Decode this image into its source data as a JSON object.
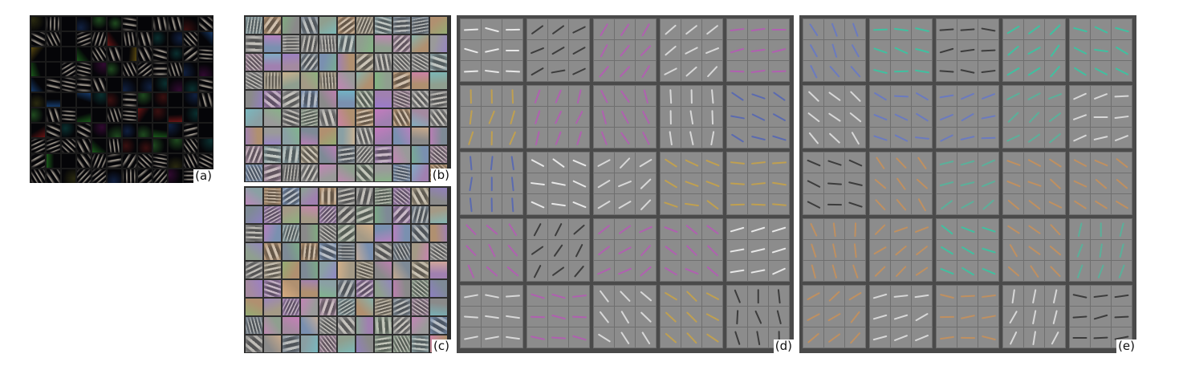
{
  "panels": {
    "a": {
      "label": "(a)"
    },
    "b": {
      "label": "(b)"
    },
    "c": {
      "label": "(c)"
    },
    "d": {
      "label": "(d)"
    },
    "e": {
      "label": "(e)"
    }
  },
  "colors": {
    "background": "#ffffff",
    "panel_a_cell": "#050508",
    "panel_a_gap": "#1a1a1a",
    "panel_bc_gap": "#2e2e2e",
    "panel_de_gap": "#4a4a4a",
    "panel_de_patch": "#8c8c8c"
  }
}
